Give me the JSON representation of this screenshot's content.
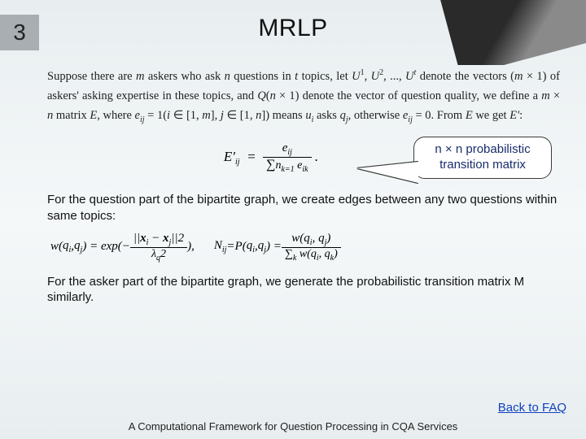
{
  "slide": {
    "number": "3",
    "title": "MRLP"
  },
  "para1_html": "Suppose there are <i>m</i> askers who ask <i>n</i> questions in <i>t</i> topics, let <i>U</i><span class='sup'>1</span>, <i>U</i><span class='sup'>2</span>, ..., <i>U</i><span class='sup'><i>t</i></span> denote the vectors (<i>m</i> × 1) of askers' asking expertise in these topics, and <i>Q</i>(<i>n</i> × 1) denote the vector of question quality, we define a <i>m</i> × <i>n</i> matrix <i>E</i>, where <i>e<span class='sub'>ij</span></i> = 1(<i>i</i> ∈ [1, <i>m</i>], <i>j</i> ∈ [1, <i>n</i>]) means <i>u<span class='sub'>i</span></i> asks <i>q<span class='sub'>j</span></i>, otherwise <i>e<span class='sub'>ij</span></i> = 0. From <i>E</i> we get <i>E'</i>:",
  "formula1": {
    "lhs": "E′",
    "lhs_sub": "ij",
    "num": "e",
    "num_sub": "ij",
    "den_pre": "∑",
    "den_sup": "n",
    "den_sub": "k=1",
    "den_var": " e",
    "den_var_sub": "ik"
  },
  "callout": {
    "line1": "n × n probabilistic",
    "line2": "transition matrix"
  },
  "para2": "For the question part of the bipartite graph, we create edges between any two questions within same topics:",
  "formula2": {
    "left_html": "<i>w</i>(<i>q<span class='sub'>i</span></i>, <i>q<span class='sub'>j</span></i>) = exp(− <span class='frac'><span class='num'>||<b>x</b><span class='sub'>i</span> − <b>x</b><span class='sub'>j</span>||<span class='sup'>2</span></span><span class='den'>λ<span class='sub'>q</span><span class='sup'>2</span></span></span> ),",
    "right_html": "<i>N<span class='sub'>ij</span></i> = <i>P</i>(<i>q<span class='sub'>i</span></i>, <i>q<span class='sub'>j</span></i>) = <span class='frac'><span class='num'><i>w</i>(<i>q<span class='sub'>i</span></i>, <i>q<span class='sub'>j</span></i>)</span><span class='den'>∑<span class='sub'>k</span> <i>w</i>(<i>q<span class='sub'>i</span></i>, <i>q<span class='sub'>k</span></i>)</span></span>"
  },
  "para3": "For the asker part of the bipartite graph, we generate the probabilistic transition matrix M similarly.",
  "back_link": "Back to FAQ",
  "footer": "A Computational Framework for Question Processing in CQA Services",
  "colors": {
    "bg_top": "#e8eef0",
    "numbox": "#a8aeb2",
    "callout_text": "#182c6b",
    "link": "#1040c0"
  }
}
